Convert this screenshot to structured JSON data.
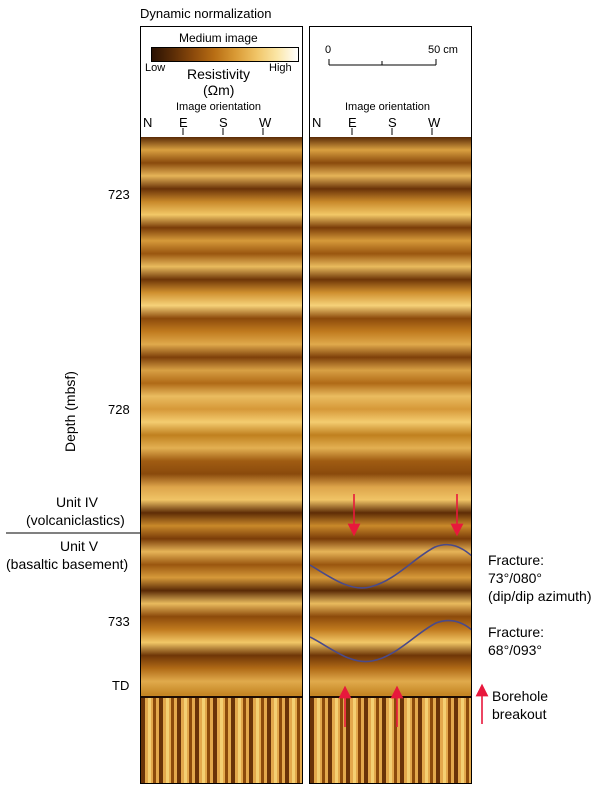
{
  "title": "Dynamic normalization",
  "legend": {
    "medium_image": "Medium image",
    "low": "Low",
    "high": "High",
    "resistivity": "Resistivity",
    "unit": "(Ωm)"
  },
  "scale": {
    "zero": "0",
    "end": "50 cm"
  },
  "orientation": {
    "label": "Image orientation",
    "dirs": [
      "N",
      "E",
      "S",
      "W"
    ]
  },
  "depth_axis": {
    "label": "Depth (mbsf)",
    "ticks": [
      "723",
      "728",
      "733",
      "TD"
    ]
  },
  "units": {
    "unit_iv": "Unit IV",
    "unit_iv_desc": "(volcaniclastics)",
    "unit_v": "Unit V",
    "unit_v_desc": "(basaltic basement)"
  },
  "annotations": {
    "fracture1": [
      "Fracture:",
      "73°/080°",
      "(dip/dip azimuth)"
    ],
    "fracture2": [
      "Fracture:",
      "68°/093°"
    ],
    "breakout": [
      "Borehole",
      "breakout"
    ]
  },
  "colors": {
    "dark": "#3a1a04",
    "mid": "#a8620f",
    "light": "#f4cf72",
    "arrow": "#e8183c",
    "sinusoid": "#4a4a8a"
  }
}
